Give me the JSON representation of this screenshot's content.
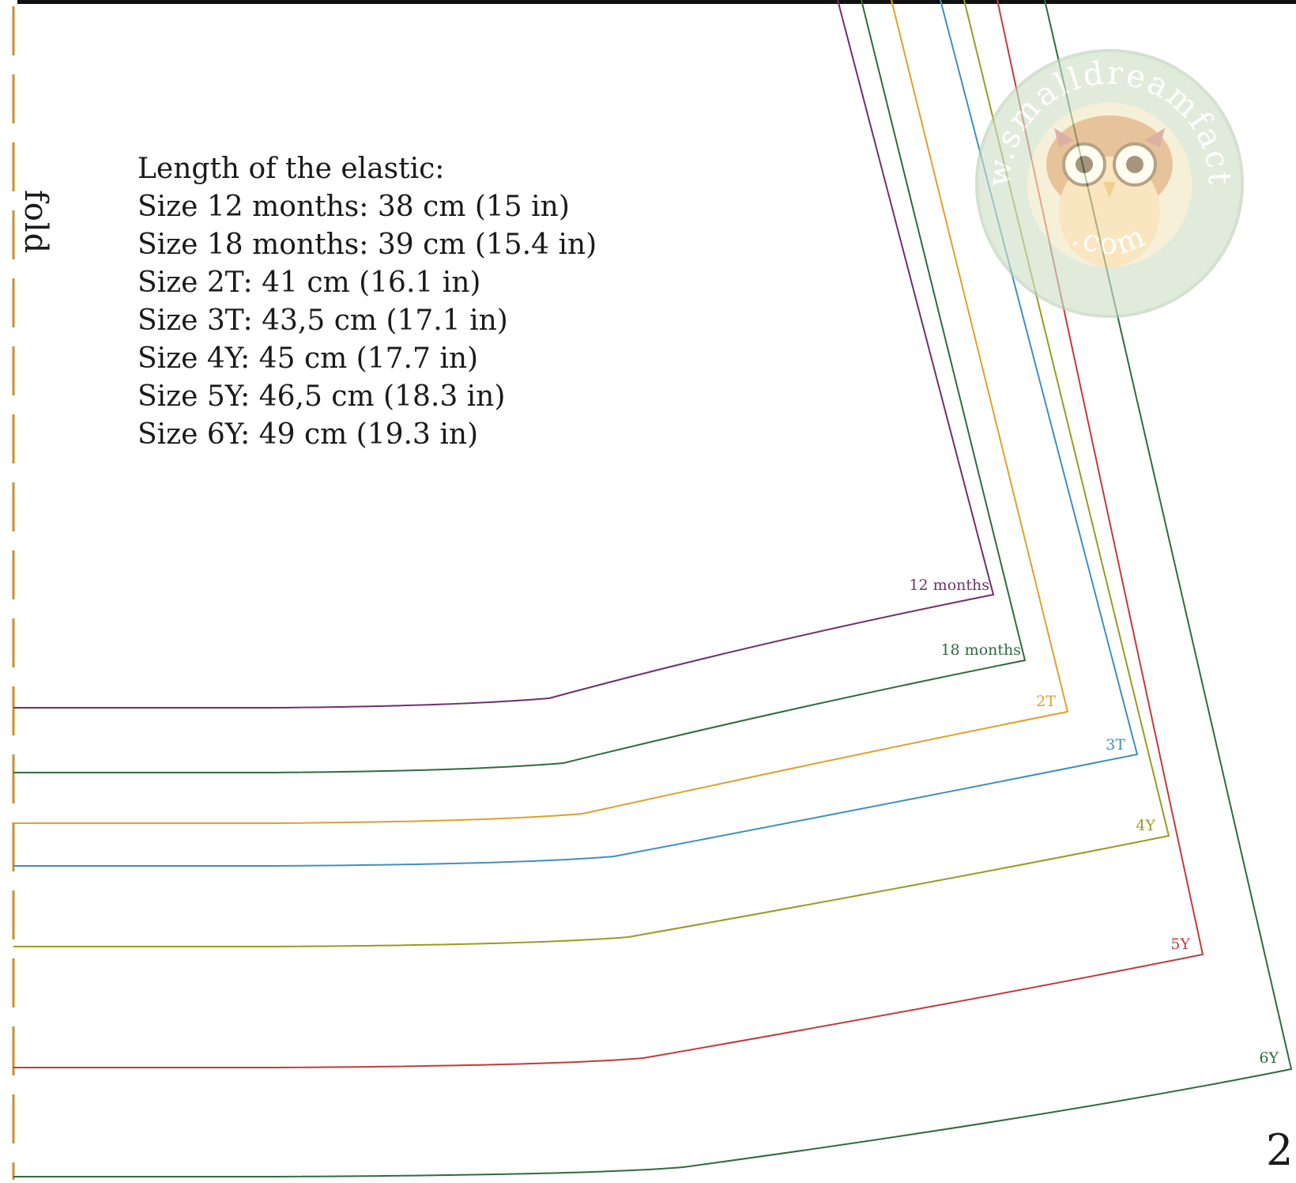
{
  "fold": {
    "label": "fold",
    "line_color": "#c8902e"
  },
  "elastic": {
    "title": "Length of the elastic:",
    "lines": [
      "Size 12 months: 38 cm (15 in)",
      "Size 18 months: 39 cm (15.4 in)",
      "Size 2T: 41 cm (16.1 in)",
      "Size 3T: 43,5 cm (17.1 in)",
      "Size 4Y: 45 cm (17.7 in)",
      "Size 5Y: 46,5 cm (18.3 in)",
      "Size 6Y: 49 cm (19.3 in)"
    ]
  },
  "sizes": [
    {
      "label": "12 months",
      "color": "#6e2f6e"
    },
    {
      "label": "18 months",
      "color": "#2f6b3f"
    },
    {
      "label": "2T",
      "color": "#e0a02a"
    },
    {
      "label": "3T",
      "color": "#3f8fbf"
    },
    {
      "label": "4Y",
      "color": "#9a9a22"
    },
    {
      "label": "5Y",
      "color": "#c43a3a"
    },
    {
      "label": "6Y",
      "color": "#2f6b3f"
    }
  ],
  "watermark": {
    "text_top": "www.smalldreamfactory",
    "text_bottom": ".com"
  },
  "page_number": "2"
}
